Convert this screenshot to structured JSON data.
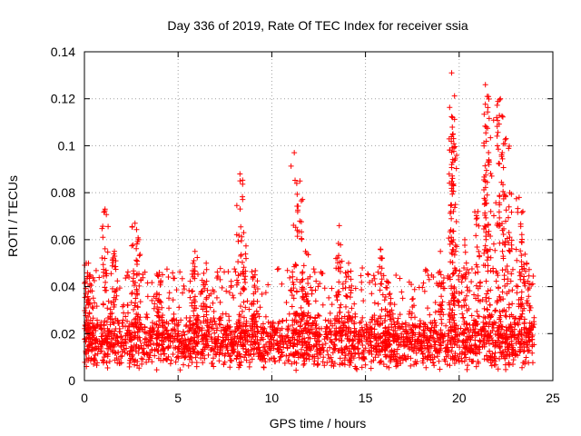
{
  "chart_data": {
    "type": "scatter",
    "title": "Day 336 of 2019, Rate Of TEC Index for receiver ssia",
    "xlabel": "GPS time / hours",
    "ylabel": "ROTI / TECUs",
    "xlim": [
      0,
      25
    ],
    "ylim": [
      0,
      0.14
    ],
    "xticks": [
      0,
      5,
      10,
      15,
      20,
      25
    ],
    "xtick_labels": [
      "0",
      "5",
      "10",
      "15",
      "20",
      "25"
    ],
    "yticks": [
      0,
      0.02,
      0.04,
      0.06,
      0.08,
      0.1,
      0.12,
      0.14
    ],
    "ytick_labels": [
      "0",
      "0.02",
      "0.04",
      "0.06",
      "0.08",
      "0.1",
      "0.12",
      "0.14"
    ],
    "grid": true,
    "marker": "+",
    "series": [
      {
        "name": "ROTI",
        "color": "#ff0000",
        "x_range": [
          0,
          24
        ],
        "background_level": [
          0.004,
          0.03
        ],
        "peaks": [
          {
            "x": 0.1,
            "y": 0.05
          },
          {
            "x": 0.3,
            "y": 0.045
          },
          {
            "x": 1.1,
            "y": 0.073
          },
          {
            "x": 1.6,
            "y": 0.055
          },
          {
            "x": 2.7,
            "y": 0.067
          },
          {
            "x": 2.9,
            "y": 0.06
          },
          {
            "x": 4.0,
            "y": 0.046
          },
          {
            "x": 5.9,
            "y": 0.055
          },
          {
            "x": 6.5,
            "y": 0.05
          },
          {
            "x": 8.3,
            "y": 0.088
          },
          {
            "x": 8.5,
            "y": 0.063
          },
          {
            "x": 9.1,
            "y": 0.045
          },
          {
            "x": 11.2,
            "y": 0.097
          },
          {
            "x": 11.5,
            "y": 0.085
          },
          {
            "x": 11.8,
            "y": 0.055
          },
          {
            "x": 13.6,
            "y": 0.066
          },
          {
            "x": 14.1,
            "y": 0.05
          },
          {
            "x": 15.8,
            "y": 0.056
          },
          {
            "x": 16.2,
            "y": 0.042
          },
          {
            "x": 19.0,
            "y": 0.055
          },
          {
            "x": 19.6,
            "y": 0.131
          },
          {
            "x": 19.65,
            "y": 0.112
          },
          {
            "x": 19.7,
            "y": 0.103
          },
          {
            "x": 19.6,
            "y": 0.092
          },
          {
            "x": 19.8,
            "y": 0.075
          },
          {
            "x": 20.3,
            "y": 0.06
          },
          {
            "x": 21.0,
            "y": 0.072
          },
          {
            "x": 21.4,
            "y": 0.126
          },
          {
            "x": 21.5,
            "y": 0.121
          },
          {
            "x": 21.45,
            "y": 0.108
          },
          {
            "x": 21.6,
            "y": 0.093
          },
          {
            "x": 22.2,
            "y": 0.12
          },
          {
            "x": 22.0,
            "y": 0.112
          },
          {
            "x": 22.5,
            "y": 0.103
          },
          {
            "x": 22.3,
            "y": 0.097
          },
          {
            "x": 22.7,
            "y": 0.08
          },
          {
            "x": 23.2,
            "y": 0.078
          },
          {
            "x": 23.4,
            "y": 0.072
          },
          {
            "x": 23.6,
            "y": 0.05
          }
        ]
      }
    ]
  }
}
